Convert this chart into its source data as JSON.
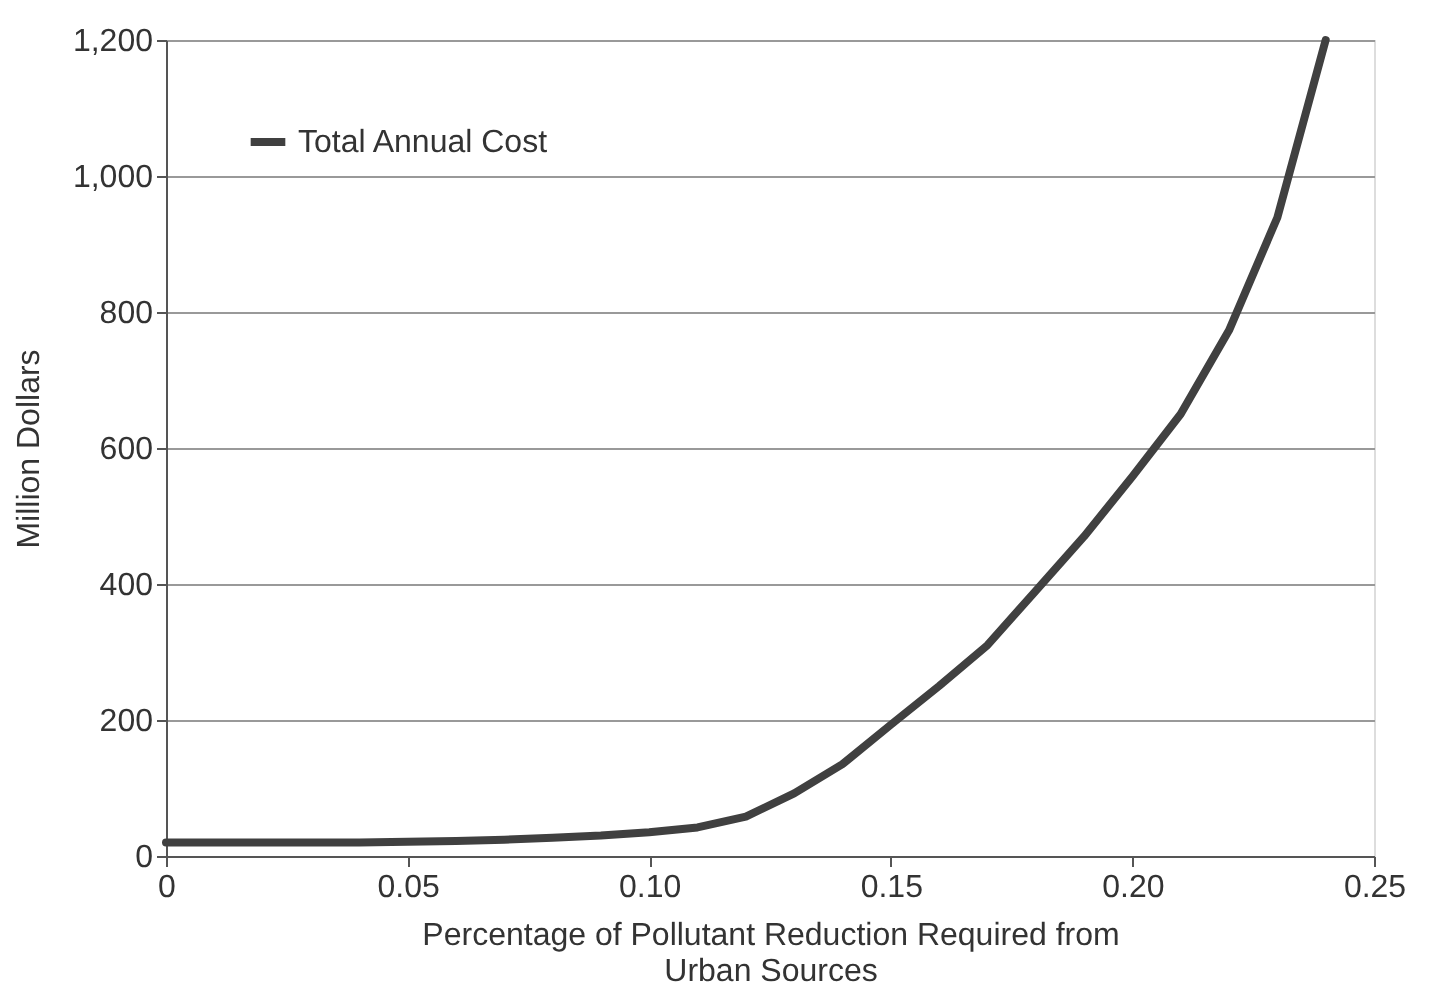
{
  "chart_data": {
    "type": "line",
    "xlabel": "Percentage of Pollutant Reduction Required from\nUrban Sources",
    "ylabel": "Million Dollars",
    "x": [
      0,
      0.01,
      0.02,
      0.03,
      0.04,
      0.05,
      0.06,
      0.07,
      0.08,
      0.09,
      0.1,
      0.11,
      0.12,
      0.13,
      0.14,
      0.15,
      0.16,
      0.17,
      0.18,
      0.19,
      0.2,
      0.21,
      0.22,
      0.23,
      0.24
    ],
    "series": [
      {
        "name": "Total Annual Cost",
        "color": "#404040",
        "values": [
          20,
          20,
          20,
          20,
          20,
          21,
          22,
          24,
          27,
          30,
          35,
          42,
          58,
          92,
          135,
          193,
          250,
          310,
          390,
          470,
          558,
          650,
          773,
          939,
          1200
        ]
      }
    ],
    "xlim": [
      0,
      0.25
    ],
    "xticks": [
      0,
      {
        "value": 0.05,
        "label": "0.05"
      },
      {
        "value": 0.1,
        "label": "0.10"
      },
      {
        "value": 0.15,
        "label": "0.15"
      },
      {
        "value": 0.2,
        "label": "0.20"
      },
      {
        "value": 0.25,
        "label": "0.25"
      }
    ],
    "ylim": [
      0,
      1200
    ],
    "yticks": [
      0,
      200,
      400,
      600,
      800,
      {
        "value": 1000,
        "label": "1,000"
      },
      {
        "value": 1200,
        "label": "1,200"
      }
    ],
    "grid": "y",
    "legend": "top left",
    "marker": "none",
    "line_style": "solid"
  }
}
